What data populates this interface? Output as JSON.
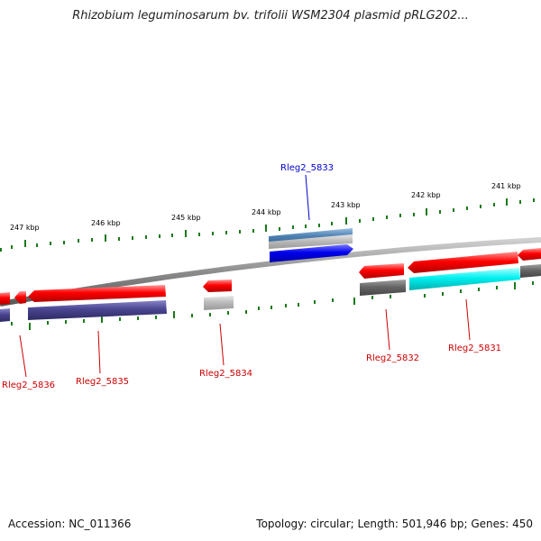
{
  "title": "Rhizobium leguminosarum bv. trifolii WSM2304 plasmid pRLG202...",
  "footer": {
    "accession": "Accession: NC_011366",
    "info": "Topology: circular; Length: 501,946 bp; Genes: 450"
  },
  "scale": {
    "labels": [
      "247 kbp",
      "246 kbp",
      "245 kbp",
      "244 kbp",
      "243 kbp",
      "242 kbp",
      "241 kbp"
    ]
  },
  "genes": [
    {
      "name": "Rleg2_5836",
      "color": "#cc0000"
    },
    {
      "name": "Rleg2_5835",
      "color": "#cc0000"
    },
    {
      "name": "Rleg2_5834",
      "color": "#cc0000"
    },
    {
      "name": "Rleg2_5833",
      "color": "#0000cc"
    },
    {
      "name": "Rleg2_5832",
      "color": "#cc0000"
    },
    {
      "name": "Rleg2_5831",
      "color": "#cc0000"
    }
  ],
  "colors": {
    "backbone": "#8c8c8c",
    "cds_red": "#ff0000",
    "cds_blue": "#0000ee",
    "feature_purple": "#4a4590",
    "feature_cyan": "#00f0f0",
    "feature_gray": "#666666",
    "feature_lightgray": "#bbbbbb",
    "feature_steelblue": "#4f82b4",
    "tick_green": "#1a7a1a"
  }
}
